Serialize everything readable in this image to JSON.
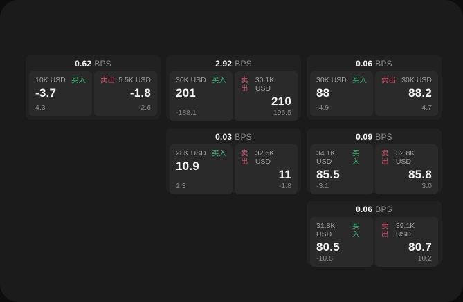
{
  "labels": {
    "bps_unit": "BPS",
    "buy": "买入",
    "sell": "卖出"
  },
  "colors": {
    "buy_accent": "#3cb878",
    "sell_accent": "#c4506a",
    "surface": "#1b1b1b",
    "card": "#212121",
    "panel": "#2a2a2a"
  },
  "cards": [
    {
      "bps": "0.62",
      "buy": {
        "notional": "10K USD",
        "price": "-3.7",
        "pnl": "4.3"
      },
      "sell": {
        "notional": "5.5K USD",
        "price": "-1.8",
        "pnl": "-2.6"
      }
    },
    {
      "bps": "2.92",
      "buy": {
        "notional": "30K USD",
        "price": "201",
        "pnl": "-188.1"
      },
      "sell": {
        "notional": "30.1K USD",
        "price": "210",
        "pnl": "196.5"
      }
    },
    {
      "bps": "0.06",
      "buy": {
        "notional": "30K USD",
        "price": "88",
        "pnl": "-4.9"
      },
      "sell": {
        "notional": "30K USD",
        "price": "88.2",
        "pnl": "4.7"
      }
    },
    {
      "bps": "0.03",
      "buy": {
        "notional": "28K USD",
        "price": "10.9",
        "pnl": "1.3"
      },
      "sell": {
        "notional": "32.6K USD",
        "price": "11",
        "pnl": "-1.8"
      }
    },
    {
      "bps": "0.09",
      "buy": {
        "notional": "34.1K USD",
        "price": "85.5",
        "pnl": "-3.1"
      },
      "sell": {
        "notional": "32.8K USD",
        "price": "85.8",
        "pnl": "3.0"
      }
    },
    {
      "bps": "0.06",
      "buy": {
        "notional": "31.8K USD",
        "price": "80.5",
        "pnl": "-10.8"
      },
      "sell": {
        "notional": "39.1K USD",
        "price": "80.7",
        "pnl": "10.2"
      }
    }
  ]
}
